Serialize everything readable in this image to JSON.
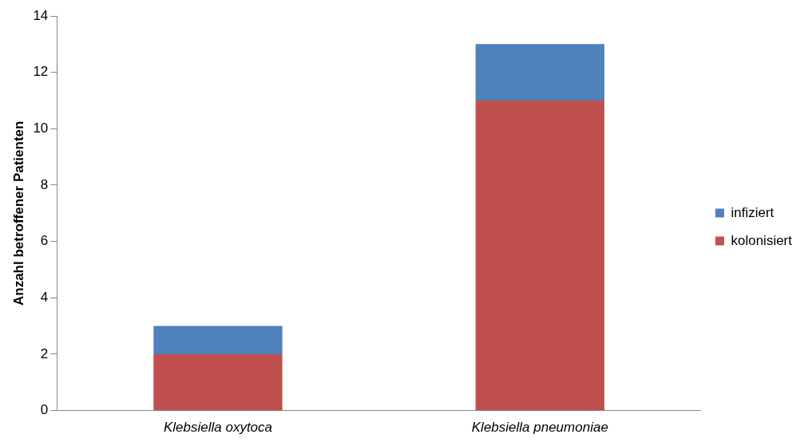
{
  "chart_data": {
    "type": "bar",
    "stacked": true,
    "ylabel": "Anzahl betroffener Patienten",
    "categories": [
      "Klebsiella oxytoca",
      "Klebsiella pneumoniae"
    ],
    "series": [
      {
        "name": "kolonisiert",
        "color": "#c0504d",
        "values": [
          2,
          11
        ]
      },
      {
        "name": "infiziert",
        "color": "#4f81bd",
        "values": [
          1,
          2
        ]
      }
    ],
    "ylim": [
      0,
      14
    ],
    "yticks": [
      0,
      2,
      4,
      6,
      8,
      10,
      12,
      14
    ],
    "grid": false,
    "legend": "right"
  }
}
